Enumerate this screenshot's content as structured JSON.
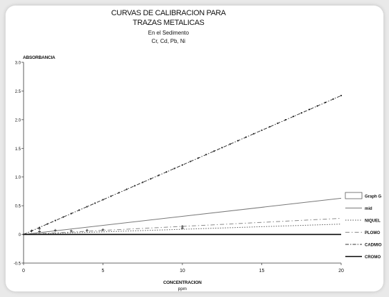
{
  "chart_data": {
    "type": "line",
    "title": [
      "CURVAS DE CALIBRACION PARA",
      "TRAZAS METALICAS"
    ],
    "subtitle": [
      "En el Sedimento",
      "Cr, Cd, Pb, Ni"
    ],
    "xlabel": [
      "CONCENTRACION",
      "ppm"
    ],
    "ylabel": "ABSORBANCIA",
    "xlim": [
      0,
      20
    ],
    "ylim": [
      -0.5,
      3.0
    ],
    "xticks": [
      "0",
      "5",
      "10",
      "15",
      "20"
    ],
    "yticks": [
      "-0.5",
      "0",
      "0.5",
      "1.0",
      "1.5",
      "2.0",
      "2.5",
      "3.0"
    ],
    "grid": false,
    "legend_position": "right",
    "legend": [
      "Graph G",
      "mid",
      "NIQUEL",
      "PLOMO",
      "CADMIO",
      "CROMO"
    ],
    "series": [
      {
        "name": "mid",
        "x": [
          0,
          20
        ],
        "y": [
          0.0,
          0.63
        ],
        "color": "#777777",
        "dash": ""
      },
      {
        "name": "NIQUEL",
        "x": [
          0,
          20
        ],
        "y": [
          0.0,
          0.18
        ],
        "color": "#555555",
        "dash": "1.5 2"
      },
      {
        "name": "PLOMO",
        "x": [
          0,
          20
        ],
        "y": [
          0.0,
          0.28
        ],
        "color": "#888888",
        "dash": "6 3 1.5 3"
      },
      {
        "name": "CADMIO",
        "x": [
          0,
          20
        ],
        "y": [
          0.0,
          2.42
        ],
        "color": "#333333",
        "dash": "5 2 1.5 2"
      },
      {
        "name": "CROMO",
        "x": [
          0,
          20
        ],
        "y": [
          0.0,
          0.0
        ],
        "color": "#000000",
        "dash": ""
      }
    ],
    "points": [
      {
        "x": 0.5,
        "y": 0.06
      },
      {
        "x": 1,
        "y": 0.1
      },
      {
        "x": 1,
        "y": 0.05
      },
      {
        "x": 2,
        "y": 0.07
      },
      {
        "x": 3,
        "y": 0.06
      },
      {
        "x": 4,
        "y": 0.07
      },
      {
        "x": 5,
        "y": 0.08
      },
      {
        "x": 10,
        "y": 0.11
      },
      {
        "x": 10,
        "y": 0.14
      }
    ]
  }
}
